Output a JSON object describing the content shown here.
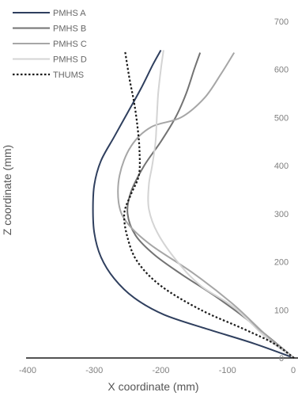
{
  "chart_data": {
    "type": "line",
    "title": "",
    "xlabel": "X coordinate (mm)",
    "ylabel": "Z coordinate (mm)",
    "xlim": [
      -400,
      0
    ],
    "ylim": [
      0,
      700
    ],
    "x_ticks": [
      "-400",
      "-300",
      "-200",
      "-100",
      "0"
    ],
    "y_ticks": [
      "0",
      "100",
      "200",
      "300",
      "400",
      "500",
      "600",
      "700"
    ],
    "grid": false,
    "legend_position": "top-left",
    "series": [
      {
        "name": "PMHS A",
        "color": "#2f3f5e",
        "dash": "solid",
        "points": [
          [
            0,
            0
          ],
          [
            -60,
            30
          ],
          [
            -130,
            60
          ],
          [
            -195,
            90
          ],
          [
            -240,
            125
          ],
          [
            -270,
            165
          ],
          [
            -290,
            210
          ],
          [
            -300,
            260
          ],
          [
            -302,
            310
          ],
          [
            -300,
            360
          ],
          [
            -290,
            410
          ],
          [
            -270,
            460
          ],
          [
            -250,
            510
          ],
          [
            -230,
            560
          ],
          [
            -212,
            610
          ],
          [
            -200,
            640
          ]
        ]
      },
      {
        "name": "PMHS B",
        "color": "#737373",
        "dash": "solid",
        "points": [
          [
            0,
            0
          ],
          [
            -35,
            40
          ],
          [
            -75,
            85
          ],
          [
            -120,
            130
          ],
          [
            -170,
            175
          ],
          [
            -210,
            215
          ],
          [
            -238,
            255
          ],
          [
            -250,
            300
          ],
          [
            -245,
            345
          ],
          [
            -225,
            400
          ],
          [
            -200,
            450
          ],
          [
            -178,
            500
          ],
          [
            -162,
            550
          ],
          [
            -150,
            600
          ],
          [
            -141,
            635
          ]
        ]
      },
      {
        "name": "PMHS C",
        "color": "#a6a6a6",
        "dash": "solid",
        "points": [
          [
            0,
            0
          ],
          [
            -40,
            45
          ],
          [
            -90,
            110
          ],
          [
            -150,
            175
          ],
          [
            -215,
            235
          ],
          [
            -250,
            280
          ],
          [
            -263,
            320
          ],
          [
            -262,
            380
          ],
          [
            -245,
            440
          ],
          [
            -215,
            480
          ],
          [
            -170,
            500
          ],
          [
            -135,
            540
          ],
          [
            -110,
            590
          ],
          [
            -90,
            635
          ]
        ]
      },
      {
        "name": "PMHS D",
        "color": "#d4d4d4",
        "dash": "solid",
        "points": [
          [
            0,
            0
          ],
          [
            -40,
            40
          ],
          [
            -90,
            105
          ],
          [
            -140,
            150
          ],
          [
            -175,
            200
          ],
          [
            -205,
            260
          ],
          [
            -218,
            310
          ],
          [
            -218,
            360
          ],
          [
            -213,
            400
          ],
          [
            -208,
            450
          ],
          [
            -206,
            500
          ],
          [
            -204,
            550
          ],
          [
            -200,
            600
          ],
          [
            -196,
            640
          ]
        ]
      },
      {
        "name": "THUMS",
        "color": "#1a1a1a",
        "dash": "dot",
        "points": [
          [
            0,
            0
          ],
          [
            -30,
            30
          ],
          [
            -75,
            60
          ],
          [
            -140,
            100
          ],
          [
            -200,
            150
          ],
          [
            -235,
            200
          ],
          [
            -250,
            250
          ],
          [
            -255,
            300
          ],
          [
            -245,
            340
          ],
          [
            -233,
            380
          ],
          [
            -232,
            430
          ],
          [
            -235,
            480
          ],
          [
            -240,
            530
          ],
          [
            -247,
            580
          ],
          [
            -254,
            640
          ]
        ]
      }
    ]
  }
}
